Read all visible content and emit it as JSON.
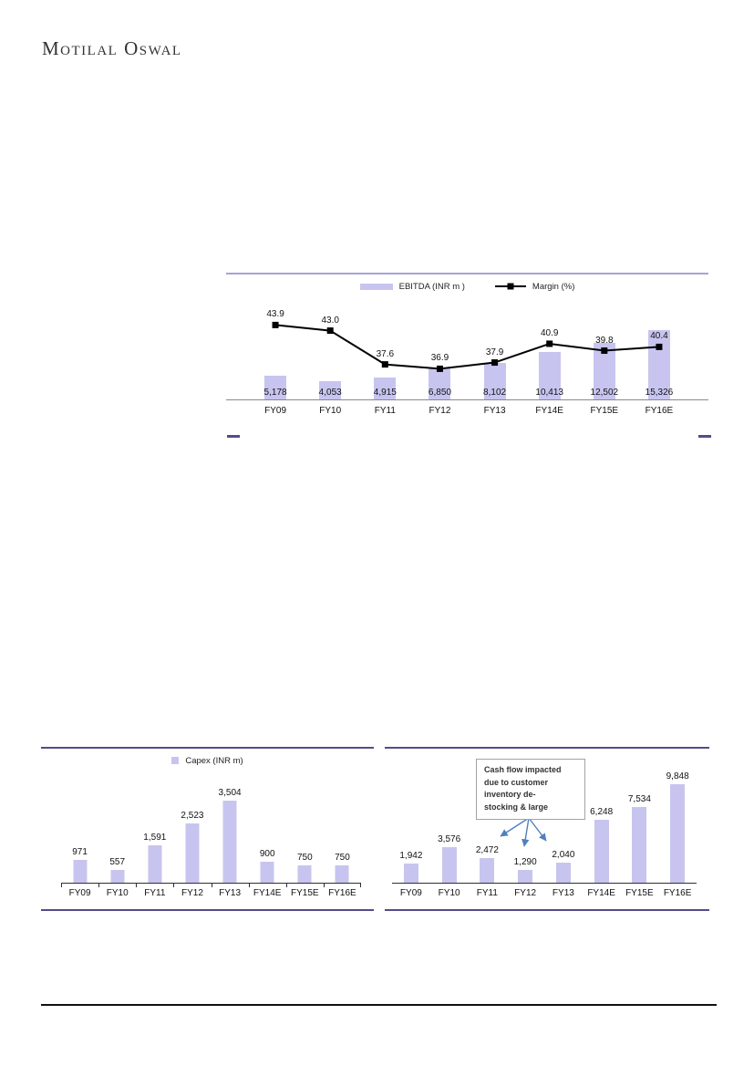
{
  "brand": {
    "logo_text": "Motilal Oswal"
  },
  "colors": {
    "bar_fill": "#c7c5ef",
    "line": "#000000",
    "accent_purple": "#584a86",
    "light_purple_border": "#a7a3d8",
    "arrow_blue": "#4f81bd"
  },
  "chart_data": [
    {
      "id": "ebitda-margin",
      "type": "bar+line",
      "categories": [
        "FY09",
        "FY10",
        "FY11",
        "FY12",
        "FY13",
        "FY14E",
        "FY15E",
        "FY16E"
      ],
      "series": [
        {
          "name": "EBITDA (INR m )",
          "type": "bar",
          "values": [
            5178,
            4053,
            4915,
            6850,
            8102,
            10413,
            12502,
            15326
          ],
          "labels": [
            "5,178",
            "4,053",
            "4,915",
            "6,850",
            "8,102",
            "10,413",
            "12,502",
            "15,326"
          ]
        },
        {
          "name": "Margin (%)",
          "type": "line",
          "values": [
            43.9,
            43.0,
            37.6,
            36.9,
            37.9,
            40.9,
            39.8,
            40.4
          ],
          "labels": [
            "43.9",
            "43.0",
            "37.6",
            "36.9",
            "37.9",
            "40.9",
            "39.8",
            "40.4"
          ]
        }
      ],
      "legend_position": "top",
      "grid": false
    },
    {
      "id": "capex",
      "type": "bar",
      "name": "Capex (INR m)",
      "categories": [
        "FY09",
        "FY10",
        "FY11",
        "FY12",
        "FY13",
        "FY14E",
        "FY15E",
        "FY16E"
      ],
      "values": [
        971,
        557,
        1591,
        2523,
        3504,
        900,
        750,
        750
      ],
      "labels": [
        "971",
        "557",
        "1,591",
        "2,523",
        "3,504",
        "900",
        "750",
        "750"
      ],
      "legend_position": "top",
      "grid": false
    },
    {
      "id": "cashflow",
      "type": "bar",
      "categories": [
        "FY09",
        "FY10",
        "FY11",
        "FY12",
        "FY13",
        "FY14E",
        "FY15E",
        "FY16E"
      ],
      "values": [
        1942,
        3576,
        2472,
        1290,
        2040,
        6248,
        7534,
        9848
      ],
      "labels": [
        "1,942",
        "3,576",
        "2,472",
        "1,290",
        "2,040",
        "6,248",
        "7,534",
        "9,848"
      ],
      "annotation": "Cash flow impacted\ndue to customer\ninventory de-\nstocking & large",
      "grid": false
    }
  ]
}
